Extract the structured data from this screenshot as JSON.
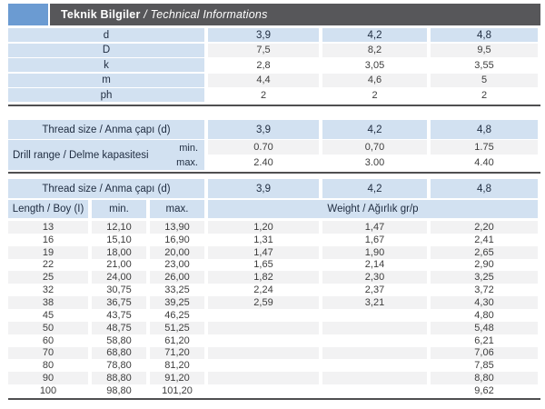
{
  "colors": {
    "accent_square": "#6b9bd2",
    "title_bar": "#57575a",
    "header_cell": "#d2e1f1",
    "stripe": "#f2f2f3",
    "rule": "#4f4f51",
    "header_text": "#1f2c40",
    "data_text": "#3d3d3d"
  },
  "header": {
    "title_bold": "Teknik Bilgiler",
    "title_italic": " / Technical Informations"
  },
  "table1": {
    "row_d": {
      "label": "d",
      "values": [
        "3,9",
        "4,2",
        "4,8"
      ]
    },
    "rows": [
      {
        "label": "D",
        "values": [
          "7,5",
          "8,2",
          "9,5"
        ]
      },
      {
        "label": "k",
        "values": [
          "2,8",
          "3,05",
          "3,55"
        ]
      },
      {
        "label": "m",
        "values": [
          "4,4",
          "4,6",
          "5"
        ]
      },
      {
        "label": "ph",
        "values": [
          "2",
          "2",
          "2"
        ]
      }
    ]
  },
  "table2": {
    "header_label": "Thread size / Anma çapı (d)",
    "header_values": [
      "3,9",
      "4,2",
      "4,8"
    ],
    "range_label": "Drill range / Delme kapasitesi",
    "min_label": "min.",
    "max_label": "max.",
    "min_values": [
      "0.70",
      "0,70",
      "1.75"
    ],
    "max_values": [
      "2.40",
      "3.00",
      "4.40"
    ]
  },
  "table3": {
    "header_label": "Thread size / Anma çapı (d)",
    "header_values": [
      "3,9",
      "4,2",
      "4,8"
    ],
    "length_label": "Length / Boy (I)",
    "min_label": "min.",
    "max_label": "max.",
    "weight_label": "Weight / Ağırlık gr/p",
    "rows": [
      {
        "len": "13",
        "min": "12,10",
        "max": "13,90",
        "w1": "1,20",
        "w2": "1,47",
        "w3": "2,20"
      },
      {
        "len": "16",
        "min": "15,10",
        "max": "16,90",
        "w1": "1,31",
        "w2": "1,67",
        "w3": "2,41"
      },
      {
        "len": "19",
        "min": "18,00",
        "max": "20,00",
        "w1": "1,47",
        "w2": "1,90",
        "w3": "2,65"
      },
      {
        "len": "22",
        "min": "21,00",
        "max": "23,00",
        "w1": "1,65",
        "w2": "2,14",
        "w3": "2,90"
      },
      {
        "len": "25",
        "min": "24,00",
        "max": "26,00",
        "w1": "1,82",
        "w2": "2,30",
        "w3": "3,25"
      },
      {
        "len": "32",
        "min": "30,75",
        "max": "33,25",
        "w1": "2,24",
        "w2": "2,37",
        "w3": "3,72"
      },
      {
        "len": "38",
        "min": "36,75",
        "max": "39,25",
        "w1": "2,59",
        "w2": "3,21",
        "w3": "4,30"
      },
      {
        "len": "45",
        "min": "43,75",
        "max": "46,25",
        "w1": "",
        "w2": "",
        "w3": "4,80"
      },
      {
        "len": "50",
        "min": "48,75",
        "max": "51,25",
        "w1": "",
        "w2": "",
        "w3": "5,48"
      },
      {
        "len": "60",
        "min": "58,80",
        "max": "61,20",
        "w1": "",
        "w2": "",
        "w3": "6,21"
      },
      {
        "len": "70",
        "min": "68,80",
        "max": "71,20",
        "w1": "",
        "w2": "",
        "w3": "7,06"
      },
      {
        "len": "80",
        "min": "78,80",
        "max": "81,20",
        "w1": "",
        "w2": "",
        "w3": "7,85"
      },
      {
        "len": "90",
        "min": "88,80",
        "max": "91,20",
        "w1": "",
        "w2": "",
        "w3": "8,80"
      },
      {
        "len": "100",
        "min": "98,80",
        "max": "101,20",
        "w1": "",
        "w2": "",
        "w3": "9,62"
      }
    ]
  }
}
